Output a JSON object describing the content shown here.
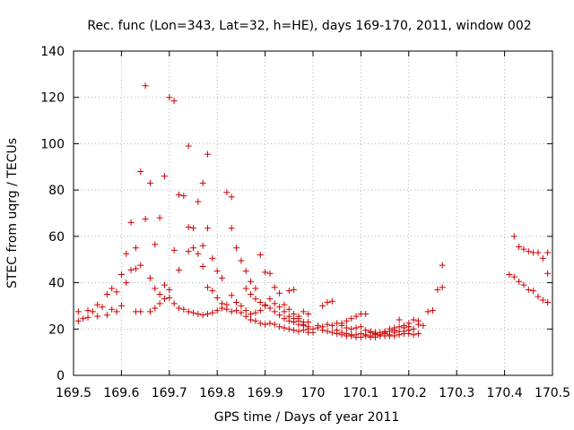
{
  "chart_data": {
    "type": "scatter",
    "title": "Rec. func (Lon=343, Lat=32, h=HE), days 169-170, 2011, window 002",
    "xlabel": "GPS time / Days of year 2011",
    "ylabel": "STEC from uqrg / TECUs",
    "xlim": [
      169.5,
      170.5
    ],
    "ylim": [
      0,
      140
    ],
    "xticks": [
      "169.5",
      "169.6",
      "169.7",
      "169.8",
      "169.9",
      "170",
      "170.1",
      "170.2",
      "170.3",
      "170.4",
      "170.5"
    ],
    "yticks": [
      "0",
      "20",
      "40",
      "60",
      "80",
      "100",
      "120",
      "140"
    ],
    "grid": true,
    "marker": "plus",
    "color": "#cc0000",
    "series": [
      {
        "points": [
          [
            169.51,
            27.5
          ],
          [
            169.52,
            24.5
          ],
          [
            169.53,
            25.0
          ],
          [
            169.54,
            27.5
          ],
          [
            169.55,
            25.5
          ],
          [
            169.56,
            29.5
          ],
          [
            169.57,
            26.0
          ],
          [
            169.58,
            28.5
          ],
          [
            169.59,
            27.5
          ],
          [
            169.6,
            30.0
          ],
          [
            169.61,
            40.0
          ],
          [
            169.62,
            45.5
          ],
          [
            169.63,
            46.0
          ],
          [
            169.64,
            47.5
          ],
          [
            169.66,
            42.0
          ],
          [
            169.67,
            37.5
          ],
          [
            169.68,
            35.0
          ],
          [
            169.69,
            33.0
          ],
          [
            169.7,
            33.5
          ],
          [
            169.71,
            31.0
          ],
          [
            169.72,
            29.0
          ],
          [
            169.73,
            28.5
          ],
          [
            169.74,
            27.5
          ],
          [
            169.75,
            27.0
          ],
          [
            169.76,
            26.5
          ],
          [
            169.77,
            26.0
          ],
          [
            169.78,
            26.5
          ],
          [
            169.79,
            27.0
          ],
          [
            169.8,
            28.0
          ],
          [
            169.81,
            29.0
          ],
          [
            169.82,
            28.5
          ],
          [
            169.83,
            27.5
          ],
          [
            169.84,
            28.0
          ],
          [
            169.85,
            27.0
          ],
          [
            169.86,
            25.5
          ],
          [
            169.87,
            24.0
          ],
          [
            169.88,
            23.5
          ],
          [
            169.89,
            22.5
          ],
          [
            169.9,
            22.0
          ],
          [
            169.91,
            22.5
          ],
          [
            169.92,
            22.0
          ],
          [
            169.93,
            21.0
          ],
          [
            169.94,
            20.5
          ],
          [
            169.95,
            20.0
          ],
          [
            169.96,
            19.5
          ],
          [
            169.97,
            19.0
          ],
          [
            169.98,
            19.5
          ],
          [
            169.99,
            18.5
          ],
          [
            170.01,
            20.5
          ],
          [
            170.02,
            19.5
          ],
          [
            170.03,
            19.0
          ],
          [
            170.04,
            18.5
          ],
          [
            170.05,
            18.0
          ],
          [
            170.06,
            17.5
          ],
          [
            170.07,
            17.0
          ],
          [
            170.08,
            17.0
          ],
          [
            170.09,
            16.5
          ],
          [
            170.1,
            16.5
          ],
          [
            170.11,
            17.0
          ],
          [
            170.12,
            16.5
          ],
          [
            170.13,
            16.5
          ],
          [
            170.14,
            17.0
          ],
          [
            170.15,
            17.0
          ],
          [
            170.16,
            17.5
          ],
          [
            170.17,
            17.0
          ],
          [
            170.18,
            17.5
          ],
          [
            170.19,
            18.0
          ],
          [
            170.2,
            18.0
          ],
          [
            170.21,
            17.5
          ],
          [
            170.22,
            18.0
          ],
          [
            170.23,
            21.5
          ],
          [
            170.24,
            27.5
          ],
          [
            170.25,
            28.0
          ],
          [
            170.26,
            37.0
          ],
          [
            170.27,
            38.0
          ],
          [
            170.27,
            47.5
          ],
          [
            169.51,
            23.5
          ],
          [
            169.53,
            28.0
          ],
          [
            169.55,
            30.5
          ],
          [
            169.57,
            35.0
          ],
          [
            169.58,
            37.5
          ],
          [
            169.59,
            36.0
          ],
          [
            169.6,
            43.5
          ],
          [
            169.61,
            52.5
          ],
          [
            169.62,
            66.0
          ],
          [
            169.63,
            55.0
          ],
          [
            169.64,
            88.0
          ],
          [
            169.65,
            67.5
          ],
          [
            169.66,
            83.0
          ],
          [
            169.67,
            56.5
          ],
          [
            169.68,
            68.0
          ],
          [
            169.69,
            86.0
          ],
          [
            169.7,
            120.0
          ],
          [
            169.71,
            118.5
          ],
          [
            169.72,
            45.5
          ],
          [
            169.73,
            77.5
          ],
          [
            169.74,
            99.0
          ],
          [
            169.74,
            64.0
          ],
          [
            169.75,
            63.5
          ],
          [
            169.76,
            75.0
          ],
          [
            169.77,
            83.0
          ],
          [
            169.77,
            56.0
          ],
          [
            169.78,
            95.5
          ],
          [
            169.78,
            63.5
          ],
          [
            169.79,
            50.5
          ],
          [
            169.8,
            45.0
          ],
          [
            169.81,
            42.0
          ],
          [
            169.82,
            79.0
          ],
          [
            169.83,
            77.0
          ],
          [
            169.83,
            63.5
          ],
          [
            169.84,
            55.0
          ],
          [
            169.85,
            49.5
          ],
          [
            169.86,
            45.0
          ],
          [
            169.87,
            40.5
          ],
          [
            169.88,
            37.5
          ],
          [
            169.89,
            52.0
          ],
          [
            169.9,
            44.5
          ],
          [
            169.91,
            44.0
          ],
          [
            169.92,
            38.0
          ],
          [
            169.93,
            35.5
          ],
          [
            169.94,
            30.5
          ],
          [
            169.95,
            28.5
          ],
          [
            169.96,
            26.5
          ],
          [
            169.97,
            25.5
          ],
          [
            169.98,
            27.5
          ],
          [
            169.99,
            26.5
          ],
          [
            169.63,
            27.5
          ],
          [
            169.64,
            27.5
          ],
          [
            169.65,
            125.0
          ],
          [
            169.66,
            27.5
          ],
          [
            169.67,
            29.0
          ],
          [
            169.68,
            31.0
          ],
          [
            169.69,
            39.0
          ],
          [
            169.7,
            37.0
          ],
          [
            169.71,
            54.0
          ],
          [
            169.72,
            78.0
          ],
          [
            169.74,
            53.5
          ],
          [
            169.75,
            55.0
          ],
          [
            169.76,
            52.5
          ],
          [
            169.77,
            47.0
          ],
          [
            169.78,
            38.0
          ],
          [
            169.79,
            36.5
          ],
          [
            169.8,
            33.5
          ],
          [
            169.81,
            31.0
          ],
          [
            169.82,
            30.5
          ],
          [
            169.83,
            34.5
          ],
          [
            169.84,
            31.5
          ],
          [
            169.85,
            30.0
          ],
          [
            169.86,
            28.0
          ],
          [
            169.87,
            26.5
          ],
          [
            169.88,
            27.0
          ],
          [
            169.89,
            28.0
          ],
          [
            169.9,
            30.5
          ],
          [
            169.91,
            29.0
          ],
          [
            169.92,
            27.5
          ],
          [
            169.93,
            26.0
          ],
          [
            169.94,
            24.5
          ],
          [
            169.95,
            23.5
          ],
          [
            169.96,
            23.0
          ],
          [
            169.97,
            22.0
          ],
          [
            169.98,
            21.5
          ],
          [
            169.99,
            20.0
          ],
          [
            170.01,
            21.5
          ],
          [
            170.02,
            21.0
          ],
          [
            170.03,
            22.0
          ],
          [
            170.04,
            21.5
          ],
          [
            170.05,
            22.5
          ],
          [
            170.06,
            21.5
          ],
          [
            170.07,
            20.5
          ],
          [
            170.08,
            20.0
          ],
          [
            170.09,
            20.5
          ],
          [
            170.1,
            21.0
          ],
          [
            170.11,
            19.5
          ],
          [
            170.12,
            19.0
          ],
          [
            170.13,
            18.5
          ],
          [
            170.14,
            18.5
          ],
          [
            170.15,
            19.0
          ],
          [
            170.16,
            20.0
          ],
          [
            170.17,
            20.5
          ],
          [
            170.18,
            21.0
          ],
          [
            170.19,
            21.5
          ],
          [
            170.2,
            22.5
          ],
          [
            170.21,
            24.0
          ],
          [
            170.22,
            23.5
          ],
          [
            169.86,
            37.5
          ],
          [
            169.87,
            35.0
          ],
          [
            169.88,
            33.0
          ],
          [
            169.89,
            31.5
          ],
          [
            169.9,
            30.0
          ],
          [
            169.91,
            33.0
          ],
          [
            169.92,
            31.0
          ],
          [
            169.93,
            29.5
          ],
          [
            169.94,
            27.5
          ],
          [
            169.95,
            25.5
          ],
          [
            169.96,
            24.5
          ],
          [
            169.97,
            23.5
          ],
          [
            169.98,
            23.0
          ],
          [
            169.99,
            23.0
          ],
          [
            170.02,
            30.0
          ],
          [
            170.03,
            31.5
          ],
          [
            170.04,
            32.0
          ],
          [
            170.06,
            22.5
          ],
          [
            170.07,
            23.5
          ],
          [
            170.08,
            24.5
          ],
          [
            170.09,
            25.5
          ],
          [
            170.1,
            26.5
          ],
          [
            170.11,
            26.5
          ],
          [
            170.12,
            18.5
          ],
          [
            170.13,
            18.0
          ],
          [
            170.15,
            18.5
          ],
          [
            170.16,
            19.0
          ],
          [
            170.17,
            19.5
          ],
          [
            170.18,
            24.0
          ],
          [
            170.19,
            20.5
          ],
          [
            170.2,
            21.0
          ],
          [
            170.21,
            20.0
          ],
          [
            170.22,
            22.0
          ],
          [
            169.95,
            36.5
          ],
          [
            169.96,
            37.0
          ],
          [
            169.97,
            24.5
          ],
          [
            169.98,
            22.0
          ],
          [
            169.99,
            21.0
          ],
          [
            170.0,
            18.5
          ],
          [
            170.0,
            20.0
          ],
          [
            170.05,
            19.5
          ],
          [
            170.06,
            18.5
          ],
          [
            170.07,
            18.0
          ],
          [
            170.08,
            17.5
          ],
          [
            170.09,
            17.5
          ],
          [
            170.1,
            18.0
          ],
          [
            170.11,
            17.5
          ],
          [
            170.12,
            17.0
          ],
          [
            170.13,
            17.5
          ],
          [
            170.14,
            17.5
          ],
          [
            170.15,
            18.0
          ],
          [
            170.16,
            17.0
          ],
          [
            170.17,
            18.5
          ],
          [
            170.18,
            19.0
          ],
          [
            170.19,
            19.0
          ],
          [
            170.2,
            19.5
          ],
          [
            170.41,
            43.5
          ],
          [
            170.42,
            42.5
          ],
          [
            170.43,
            40.5
          ],
          [
            170.44,
            39.0
          ],
          [
            170.45,
            37.0
          ],
          [
            170.46,
            36.5
          ],
          [
            170.47,
            34.0
          ],
          [
            170.48,
            32.5
          ],
          [
            170.49,
            31.5
          ],
          [
            170.42,
            60.0
          ],
          [
            170.43,
            55.5
          ],
          [
            170.44,
            54.5
          ],
          [
            170.45,
            53.5
          ],
          [
            170.46,
            53.0
          ],
          [
            170.47,
            53.0
          ],
          [
            170.48,
            50.5
          ],
          [
            170.49,
            53.0
          ],
          [
            170.49,
            44.0
          ]
        ]
      }
    ]
  }
}
